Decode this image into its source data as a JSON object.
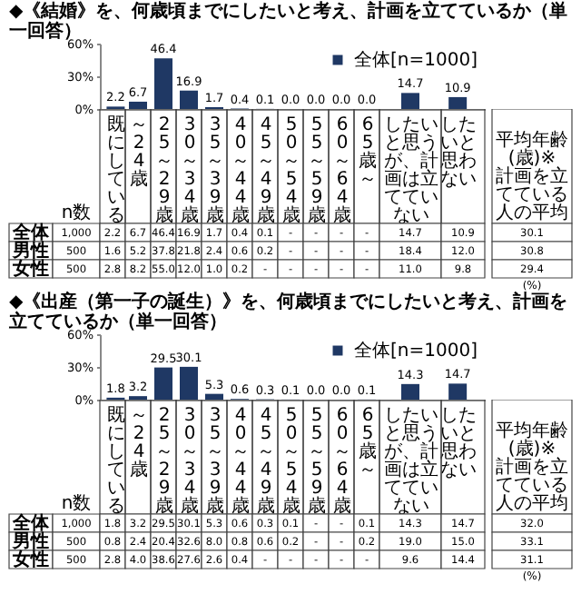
{
  "chart_data": [
    {
      "type": "bar",
      "title": "◆《結婚》を、何歳頃までにしたいと考え、計画を立てているか（単一回答）",
      "categories": [
        "既にしている",
        "～24歳",
        "25～29歳",
        "30～34歳",
        "35～39歳",
        "40～44歳",
        "45～49歳",
        "50～54歳",
        "55～59歳",
        "60～64歳",
        "65歳～",
        "したいと思うが、計画は立てていない",
        "したいと思わない"
      ],
      "series": [
        {
          "name": "全体[n=1000]",
          "color": "#1f3864",
          "values": [
            2.2,
            6.7,
            46.4,
            16.9,
            1.7,
            0.4,
            0.1,
            0,
            0,
            0,
            0,
            14.7,
            10.9
          ],
          "value_labels": [
            "2.2",
            "6.7",
            "46.4",
            "16.9",
            "1.7",
            "0.4",
            "0.1",
            "0.0",
            "0.0",
            "0.0",
            "0.0",
            "14.7",
            "10.9"
          ]
        }
      ],
      "ylim": [
        0,
        60
      ],
      "yticks": [
        {
          "value": 0,
          "label": "0%"
        },
        {
          "value": 30,
          "label": "30%"
        },
        {
          "value": 60,
          "label": "60%"
        }
      ],
      "legend": "top right"
    },
    {
      "type": "other",
      "categories": [
        "n数",
        null,
        null,
        null,
        null,
        null,
        null,
        null,
        null,
        null,
        null,
        null,
        null,
        null,
        "平均年齢(歳)※計画を立てている人の平均"
      ],
      "y_categories": [
        "全体",
        "男性",
        "女性"
      ],
      "cell_labels": [
        [
          "1,000",
          "2.2",
          "6.7",
          "46.4",
          "16.9",
          "1.7",
          "0.4",
          "0.1",
          "-",
          "-",
          "-",
          "-",
          "14.7",
          "10.9",
          "30.1"
        ],
        [
          "500",
          "1.6",
          "5.2",
          "37.8",
          "21.8",
          "2.4",
          "0.6",
          "0.2",
          "-",
          "-",
          "-",
          "-",
          "18.4",
          "12.0",
          "30.8"
        ],
        [
          "500",
          "2.8",
          "8.2",
          "55.0",
          "12.0",
          "1.0",
          "0.2",
          "-",
          "-",
          "-",
          "-",
          "-",
          "11.0",
          "9.8",
          "29.4"
        ]
      ],
      "annotations": [
        "(%)"
      ]
    },
    {
      "type": "bar",
      "title": "◆《出産（第一子の誕生）》を、何歳頃までにしたいと考え、計画を立てているか（単一回答）",
      "categories": [
        "既にしている",
        "～24歳",
        "25～29歳",
        "30～34歳",
        "35～39歳",
        "40～44歳",
        "45～49歳",
        "50～54歳",
        "55～59歳",
        "60～64歳",
        "65歳～",
        "したいと思うが、計画は立てていない",
        "したいと思わない"
      ],
      "series": [
        {
          "name": "全体[n=1000]",
          "color": "#1f3864",
          "values": [
            1.8,
            3.2,
            29.5,
            30.1,
            5.3,
            0.6,
            0.3,
            0.1,
            0,
            0,
            0.1,
            14.3,
            14.7
          ],
          "value_labels": [
            "1.8",
            "3.2",
            "29.5",
            "30.1",
            "5.3",
            "0.6",
            "0.3",
            "0.1",
            "0.0",
            "0.0",
            "0.1",
            "14.3",
            "14.7"
          ]
        }
      ],
      "ylim": [
        0,
        60
      ],
      "yticks": [
        {
          "value": 0,
          "label": "0%"
        },
        {
          "value": 30,
          "label": "30%"
        },
        {
          "value": 60,
          "label": "60%"
        }
      ],
      "legend": "top right"
    },
    {
      "type": "other",
      "categories": [
        "n数",
        null,
        null,
        null,
        null,
        null,
        null,
        null,
        null,
        null,
        null,
        null,
        null,
        null,
        "平均年齢(歳)※計画を立てている人の平均"
      ],
      "y_categories": [
        "全体",
        "男性",
        "女性"
      ],
      "cell_labels": [
        [
          "1,000",
          "1.8",
          "3.2",
          "29.5",
          "30.1",
          "5.3",
          "0.6",
          "0.3",
          "0.1",
          "-",
          "-",
          "0.1",
          "14.3",
          "14.7",
          "32.0"
        ],
        [
          "500",
          "0.8",
          "2.4",
          "20.4",
          "32.6",
          "8.0",
          "0.8",
          "0.6",
          "0.2",
          "-",
          "-",
          "0.2",
          "19.0",
          "15.0",
          "33.1"
        ],
        [
          "500",
          "2.8",
          "4.0",
          "38.6",
          "27.6",
          "2.6",
          "0.4",
          "-",
          "-",
          "-",
          "-",
          "-",
          "9.6",
          "14.4",
          "31.1"
        ]
      ],
      "annotations": [
        "(%)"
      ]
    }
  ]
}
